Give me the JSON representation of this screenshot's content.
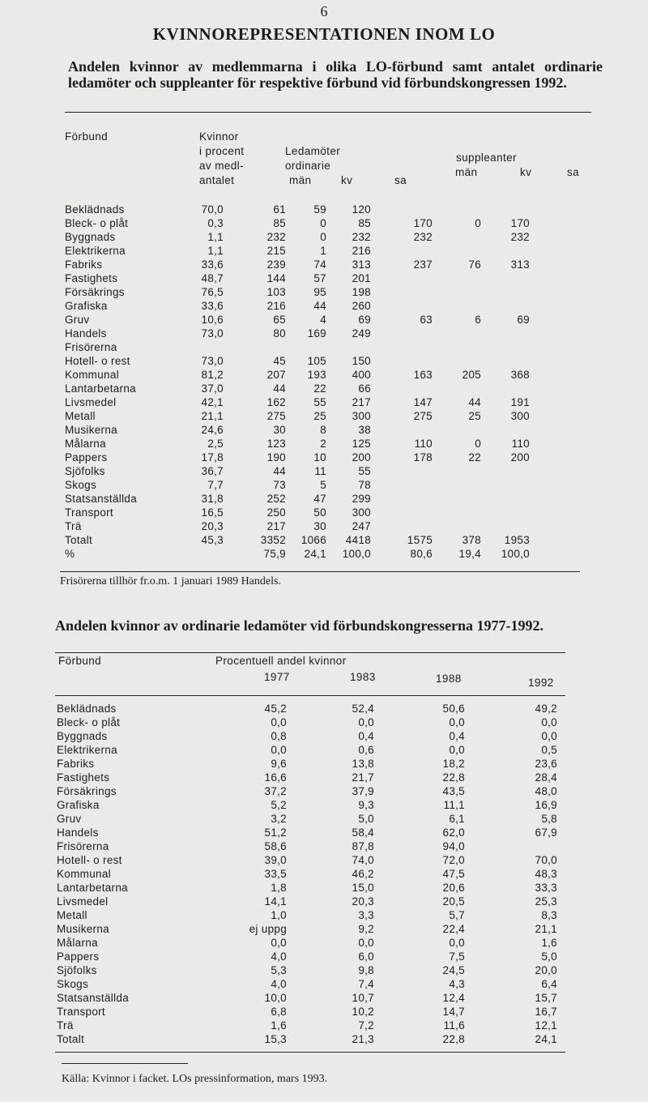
{
  "page_number": "6",
  "title": "KVINNOREPRESENTATIONEN INOM LO",
  "table1": {
    "caption": "Andelen kvinnor av medlemmarna i olika LO-förbund samt antalet ordinarie ledamöter och suppleanter för respektive förbund vid förbundskongressen 1992.",
    "headers": {
      "forbund": "Förbund",
      "kvinnor": [
        "Kvinnor",
        "i procent",
        "av medl-",
        "antalet"
      ],
      "ledamoter": [
        "Ledamöter",
        "ordinarie"
      ],
      "suppleanter": "suppleanter",
      "ledamoter_cols": [
        "män",
        "kv",
        "sa"
      ],
      "suppleanter_cols": [
        "män",
        "kv",
        "sa"
      ]
    },
    "rows": [
      [
        "Beklädnads",
        "70,0",
        "61",
        "59",
        "120",
        null,
        null,
        null
      ],
      [
        "Bleck- o plåt",
        "0,3",
        "85",
        "0",
        "85",
        "170",
        "0",
        "170"
      ],
      [
        "Byggnads",
        "1,1",
        "232",
        "0",
        "232",
        "232",
        null,
        "232"
      ],
      [
        "Elektrikerna",
        "1,1",
        "215",
        "1",
        "216",
        null,
        null,
        null
      ],
      [
        "Fabriks",
        "33,6",
        "239",
        "74",
        "313",
        "237",
        "76",
        "313"
      ],
      [
        "Fastighets",
        "48,7",
        "144",
        "57",
        "201",
        null,
        null,
        null
      ],
      [
        "Försäkrings",
        "76,5",
        "103",
        "95",
        "198",
        null,
        null,
        null
      ],
      [
        "Grafiska",
        "33,6",
        "216",
        "44",
        "260",
        null,
        null,
        null
      ],
      [
        "Gruv",
        "10,6",
        "65",
        "4",
        "69",
        "63",
        "6",
        "69"
      ],
      [
        "Handels",
        "73,0",
        "80",
        "169",
        "249",
        null,
        null,
        null
      ],
      [
        " Frisörerna",
        null,
        null,
        null,
        null,
        null,
        null,
        null
      ],
      [
        "Hotell- o rest",
        "73,0",
        "45",
        "105",
        "150",
        null,
        null,
        null
      ],
      [
        "Kommunal",
        "81,2",
        "207",
        "193",
        "400",
        "163",
        "205",
        "368"
      ],
      [
        "Lantarbetarna",
        "37,0",
        "44",
        "22",
        "66",
        null,
        null,
        null
      ],
      [
        "Livsmedel",
        "42,1",
        "162",
        "55",
        "217",
        "147",
        "44",
        "191"
      ],
      [
        "Metall",
        "21,1",
        "275",
        "25",
        "300",
        "275",
        "25",
        "300"
      ],
      [
        "Musikerna",
        "24,6",
        "30",
        "8",
        "38",
        null,
        null,
        null
      ],
      [
        "Målarna",
        "2,5",
        "123",
        "2",
        "125",
        "110",
        "0",
        "110"
      ],
      [
        "Pappers",
        "17,8",
        "190",
        "10",
        "200",
        "178",
        "22",
        "200"
      ],
      [
        "Sjöfolks",
        "36,7",
        "44",
        "11",
        "55",
        null,
        null,
        null
      ],
      [
        "Skogs",
        "7,7",
        "73",
        "5",
        "78",
        null,
        null,
        null
      ],
      [
        "Statsanställda",
        "31,8",
        "252",
        "47",
        "299",
        null,
        null,
        null
      ],
      [
        "Transport",
        "16,5",
        "250",
        "50",
        "300",
        null,
        null,
        null
      ],
      [
        "Trä",
        "20,3",
        "217",
        "30",
        "247",
        null,
        null,
        null
      ],
      [
        "Totalt",
        "45,3",
        "3352",
        "1066",
        "4418",
        "1575",
        "378",
        "1953"
      ],
      [
        "%",
        null,
        "75,9",
        "24,1",
        "100,0",
        "80,6",
        "19,4",
        "100,0"
      ]
    ],
    "note": "Frisörerna tillhör fr.o.m. 1 januari 1989 Handels."
  },
  "table2": {
    "caption": "Andelen kvinnor av ordinarie ledamöter vid förbundskongresserna 1977-1992.",
    "headers": {
      "forbund": "Förbund",
      "group": "Procentuell andel kvinnor",
      "years": [
        "1977",
        "1983",
        "1988",
        "1992"
      ]
    },
    "rows": [
      [
        "Beklädnads",
        "45,2",
        "52,4",
        "50,6",
        "49,2"
      ],
      [
        "Bleck- o plåt",
        "0,0",
        "0,0",
        "0,0",
        "0,0"
      ],
      [
        "Byggnads",
        "0,8",
        "0,4",
        "0,4",
        "0,0"
      ],
      [
        "Elektrikerna",
        "0,0",
        "0,6",
        "0,0",
        "0,5"
      ],
      [
        "Fabriks",
        "9,6",
        "13,8",
        "18,2",
        "23,6"
      ],
      [
        "Fastighets",
        "16,6",
        "21,7",
        "22,8",
        "28,4"
      ],
      [
        "Försäkrings",
        "37,2",
        "37,9",
        "43,5",
        "48,0"
      ],
      [
        "Grafiska",
        "5,2",
        "9,3",
        "11,1",
        "16,9"
      ],
      [
        "Gruv",
        "3,2",
        "5,0",
        "6,1",
        "5,8"
      ],
      [
        "Handels",
        "51,2",
        "58,4",
        "62,0",
        "67,9"
      ],
      [
        " Frisörerna",
        "58,6",
        "87,8",
        "94,0",
        null
      ],
      [
        "Hotell- o rest",
        "39,0",
        "74,0",
        "72,0",
        "70,0"
      ],
      [
        "Kommunal",
        "33,5",
        "46,2",
        "47,5",
        "48,3"
      ],
      [
        "Lantarbetarna",
        "1,8",
        "15,0",
        "20,6",
        "33,3"
      ],
      [
        "Livsmedel",
        "14,1",
        "20,3",
        "20,5",
        "25,3"
      ],
      [
        "Metall",
        "1,0",
        "3,3",
        "5,7",
        "8,3"
      ],
      [
        "Musikerna",
        "ej uppg",
        "9,2",
        "22,4",
        "21,1"
      ],
      [
        "Målarna",
        "0,0",
        "0,0",
        "0,0",
        "1,6"
      ],
      [
        "Pappers",
        "4,0",
        "6,0",
        "7,5",
        "5,0"
      ],
      [
        "Sjöfolks",
        "5,3",
        "9,8",
        "24,5",
        "20,0"
      ],
      [
        "Skogs",
        "4,0",
        "7,4",
        "4,3",
        "6,4"
      ],
      [
        "Statsanställda",
        "10,0",
        "10,7",
        "12,4",
        "15,7"
      ],
      [
        "Transport",
        "6,8",
        "10,2",
        "14,7",
        "16,7"
      ],
      [
        "Trä",
        "1,6",
        "7,2",
        "11,6",
        "12,1"
      ],
      [
        "Totalt",
        "15,3",
        "21,3",
        "22,8",
        "24,1"
      ]
    ]
  },
  "source": "Källa: Kvinnor i facket. LOs pressinformation, mars 1993."
}
